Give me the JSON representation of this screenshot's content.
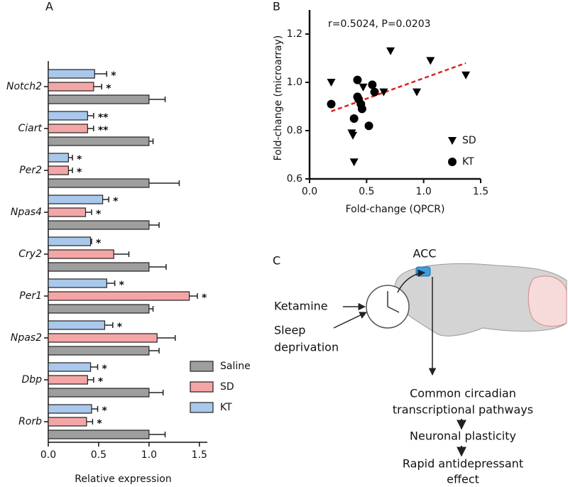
{
  "chart_data": [
    {
      "type": "bar",
      "orientation": "horizontal",
      "panel_label": "A",
      "xlabel": "Relative expression",
      "categories": [
        "Notch2",
        "Ciart",
        "Per2",
        "Npas4",
        "Cry2",
        "Per1",
        "Npas2",
        "Dbp",
        "Rorb"
      ],
      "series": [
        {
          "name": "Saline",
          "color": "#9e9e9e",
          "values": [
            1.0,
            1.0,
            1.0,
            1.0,
            1.0,
            1.0,
            1.0,
            1.0,
            1.0
          ],
          "errors": [
            0.16,
            0.04,
            0.3,
            0.1,
            0.17,
            0.04,
            0.1,
            0.14,
            0.16
          ]
        },
        {
          "name": "SD",
          "color": "#f4a6a6",
          "values": [
            0.45,
            0.39,
            0.2,
            0.37,
            0.65,
            1.4,
            1.08,
            0.39,
            0.38
          ],
          "errors": [
            0.08,
            0.06,
            0.04,
            0.06,
            0.15,
            0.08,
            0.18,
            0.06,
            0.06
          ],
          "significance": [
            "*",
            "**",
            "*",
            "*",
            null,
            "*",
            null,
            "*",
            "*"
          ]
        },
        {
          "name": "KT",
          "color": "#a9c8ec",
          "values": [
            0.46,
            0.39,
            0.2,
            0.54,
            0.42,
            0.58,
            0.56,
            0.42,
            0.43
          ],
          "errors": [
            0.12,
            0.06,
            0.04,
            0.06,
            0.01,
            0.08,
            0.08,
            0.07,
            0.06
          ],
          "significance": [
            "*",
            "**",
            "*",
            "*",
            "*",
            "*",
            "*",
            "*",
            "*"
          ]
        }
      ],
      "xlim": [
        0,
        1.6
      ],
      "xticks": [
        {
          "value": 0,
          "label": "0.0"
        },
        {
          "value": 0.5,
          "label": "0.5"
        },
        {
          "value": 1,
          "label": "1.0"
        },
        {
          "value": 1.5,
          "label": "1.5"
        }
      ]
    },
    {
      "type": "scatter",
      "panel_label": "B",
      "annotation": "r=0.5024, P=0.0203",
      "xlabel": "Fold-change (QPCR)",
      "ylabel": "Fold-change (microarray)",
      "series": [
        {
          "name": "SD",
          "color": "#000000",
          "marker": "triangle-down",
          "x": [
            0.19,
            0.47,
            0.65,
            0.71,
            1.06,
            0.94,
            1.37,
            0.37,
            0.38,
            0.39
          ],
          "values": [
            1.0,
            0.98,
            0.96,
            1.13,
            1.09,
            0.96,
            1.03,
            0.79,
            0.78,
            0.67
          ]
        },
        {
          "name": "KT",
          "color": "#000000",
          "marker": "circle",
          "x": [
            0.19,
            0.42,
            0.42,
            0.45,
            0.46,
            0.39,
            0.52,
            0.55,
            0.57,
            0.43
          ],
          "values": [
            0.91,
            1.01,
            0.94,
            0.91,
            0.89,
            0.85,
            0.82,
            0.99,
            0.96,
            0.93
          ]
        }
      ],
      "trendline": {
        "color": "#e02020",
        "x": [
          0.19,
          1.37
        ],
        "y": [
          0.88,
          1.08
        ]
      },
      "xlim": [
        0,
        1.5
      ],
      "ylim": [
        0.6,
        1.3
      ],
      "xticks": [
        {
          "value": 0,
          "label": "0.0"
        },
        {
          "value": 0.5,
          "label": "0.5"
        },
        {
          "value": 1,
          "label": "1.0"
        },
        {
          "value": 1.5,
          "label": "1.5"
        }
      ],
      "yticks": [
        0.6,
        0.8,
        {
          "value": 1,
          "label": "1.0"
        },
        1.2
      ]
    }
  ],
  "diagram": {
    "panel_label": "C",
    "acc": "ACC",
    "ketamine": "Ketamine",
    "sleep_deprivation": [
      "Sleep",
      "deprivation"
    ],
    "steps": [
      [
        "Common circadian",
        "transcriptional pathways"
      ],
      [
        "Neuronal plasticity"
      ],
      [
        "Rapid antidepressant",
        "effect"
      ]
    ]
  }
}
